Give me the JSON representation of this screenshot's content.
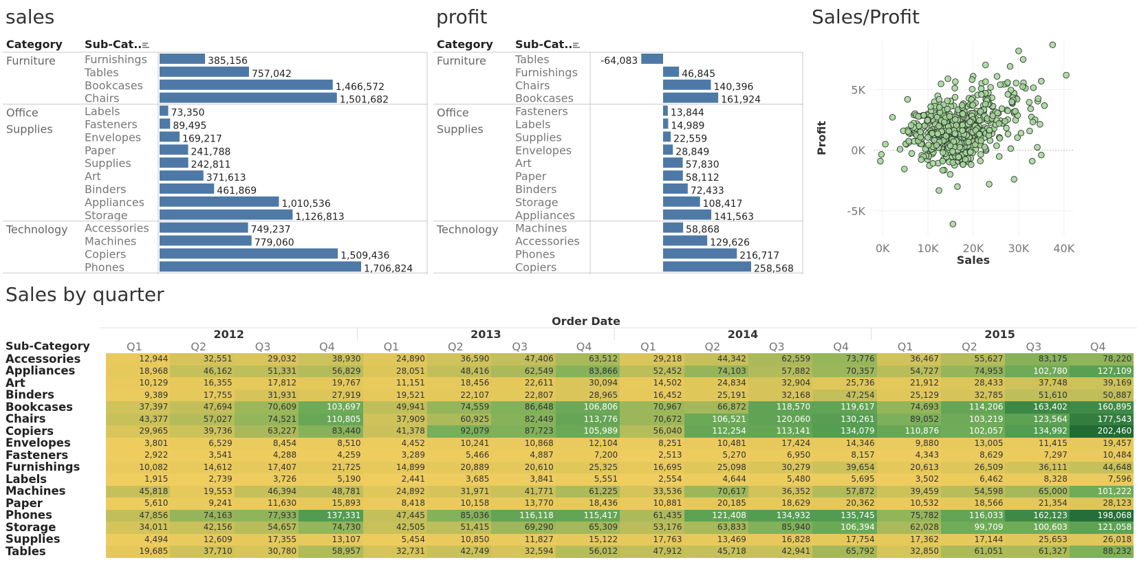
{
  "sales_panel": {
    "title": "sales",
    "col_category": "Category",
    "col_subcategory": "Sub-Cat..",
    "groups": [
      {
        "category": [
          "Furniture"
        ],
        "items": [
          [
            "Furnishings",
            385156,
            "385,156"
          ],
          [
            "Tables",
            757042,
            "757,042"
          ],
          [
            "Bookcases",
            1466572,
            "1,466,572"
          ],
          [
            "Chairs",
            1501682,
            "1,501,682"
          ]
        ]
      },
      {
        "category": [
          "Office",
          "Supplies"
        ],
        "items": [
          [
            "Labels",
            73350,
            "73,350"
          ],
          [
            "Fasteners",
            89495,
            "89,495"
          ],
          [
            "Envelopes",
            169217,
            "169,217"
          ],
          [
            "Paper",
            241788,
            "241,788"
          ],
          [
            "Supplies",
            242811,
            "242,811"
          ],
          [
            "Art",
            371613,
            "371,613"
          ],
          [
            "Binders",
            461869,
            "461,869"
          ],
          [
            "Appliances",
            1010536,
            "1,010,536"
          ],
          [
            "Storage",
            1126813,
            "1,126,813"
          ]
        ]
      },
      {
        "category": [
          "Technology"
        ],
        "items": [
          [
            "Accessories",
            749237,
            "749,237"
          ],
          [
            "Machines",
            779060,
            "779,060"
          ],
          [
            "Copiers",
            1509436,
            "1,509,436"
          ],
          [
            "Phones",
            1706824,
            "1,706,824"
          ]
        ]
      }
    ]
  },
  "profit_panel": {
    "title": "profit",
    "col_category": "Category",
    "col_subcategory": "Sub-Cat..",
    "groups": [
      {
        "category": [
          "Furniture"
        ],
        "items": [
          [
            "Tables",
            -64083,
            "-64,083"
          ],
          [
            "Furnishings",
            46845,
            "46,845"
          ],
          [
            "Chairs",
            140396,
            "140,396"
          ],
          [
            "Bookcases",
            161924,
            "161,924"
          ]
        ]
      },
      {
        "category": [
          "Office",
          "Supplies"
        ],
        "items": [
          [
            "Fasteners",
            13844,
            "13,844"
          ],
          [
            "Labels",
            14989,
            "14,989"
          ],
          [
            "Supplies",
            22559,
            "22,559"
          ],
          [
            "Envelopes",
            28849,
            "28,849"
          ],
          [
            "Art",
            57830,
            "57,830"
          ],
          [
            "Paper",
            58112,
            "58,112"
          ],
          [
            "Binders",
            72433,
            "72,433"
          ],
          [
            "Storage",
            108417,
            "108,417"
          ],
          [
            "Appliances",
            141563,
            "141,563"
          ]
        ]
      },
      {
        "category": [
          "Technology"
        ],
        "items": [
          [
            "Machines",
            58868,
            "58,868"
          ],
          [
            "Accessories",
            129626,
            "129,626"
          ],
          [
            "Phones",
            216717,
            "216,717"
          ],
          [
            "Copiers",
            258568,
            "258,568"
          ]
        ]
      }
    ]
  },
  "scatter_panel": {
    "title": "Sales/Profit",
    "xlabel": "Sales",
    "ylabel": "Profit",
    "x_ticks": [
      "0K",
      "10K",
      "20K",
      "30K",
      "40K"
    ],
    "y_ticks": [
      "5K",
      "0K",
      "-5K"
    ]
  },
  "heatmap_panel": {
    "title": "Sales by quarter",
    "header": "Order Date",
    "row_header": "Sub-Category",
    "years": [
      "2012",
      "2013",
      "2014",
      "2015"
    ],
    "quarters": [
      "Q1",
      "Q2",
      "Q3",
      "Q4"
    ]
  },
  "colors": {
    "bar": "#4e79a7",
    "scatter_fill": "#a6d49b",
    "scatter_stroke": "#2a3a2a",
    "heat_low": "#f0c95a",
    "heat_high": "#226b35"
  },
  "chart_data": [
    {
      "type": "bar",
      "name": "sales",
      "categories": [
        "Furnishings",
        "Tables",
        "Bookcases",
        "Chairs",
        "Labels",
        "Fasteners",
        "Envelopes",
        "Paper",
        "Supplies",
        "Art",
        "Binders",
        "Appliances",
        "Storage",
        "Accessories",
        "Machines",
        "Copiers",
        "Phones"
      ],
      "values": [
        385156,
        757042,
        1466572,
        1501682,
        73350,
        89495,
        169217,
        241788,
        242811,
        371613,
        461869,
        1010536,
        1126813,
        749237,
        779060,
        1509436,
        1706824
      ]
    },
    {
      "type": "bar",
      "name": "profit",
      "categories": [
        "Tables",
        "Furnishings",
        "Chairs",
        "Bookcases",
        "Fasteners",
        "Labels",
        "Supplies",
        "Envelopes",
        "Art",
        "Paper",
        "Binders",
        "Storage",
        "Appliances",
        "Machines",
        "Accessories",
        "Phones",
        "Copiers"
      ],
      "values": [
        -64083,
        46845,
        140396,
        161924,
        13844,
        14989,
        22559,
        28849,
        57830,
        58112,
        72433,
        108417,
        141563,
        58868,
        129626,
        216717,
        258568
      ]
    },
    {
      "type": "scatter",
      "name": "Sales/Profit",
      "xlim": [
        -2000,
        42000
      ],
      "ylim": [
        -7000,
        9000
      ],
      "clusters": [
        {
          "x_mean": 15000,
          "x_sd": 4500,
          "y_mean": 1500,
          "y_sd": 1200,
          "n": 500
        },
        {
          "x_mean": 24000,
          "x_sd": 5000,
          "y_mean": 3500,
          "y_sd": 1500,
          "n": 120
        }
      ],
      "outliers": [
        [
          37500,
          8700
        ],
        [
          40500,
          6200
        ],
        [
          35000,
          5700
        ],
        [
          35000,
          -400
        ],
        [
          15500,
          -6100
        ],
        [
          16500,
          -3000
        ],
        [
          28500,
          4000
        ],
        [
          33000,
          -900
        ],
        [
          29000,
          -2400
        ],
        [
          30000,
          8200
        ],
        [
          31000,
          7500
        ],
        [
          -500,
          -900
        ],
        [
          600,
          500
        ],
        [
          23500,
          -2800
        ]
      ]
    },
    {
      "type": "heatmap",
      "name": "Sales by quarter",
      "rows": [
        "Accessories",
        "Appliances",
        "Art",
        "Binders",
        "Bookcases",
        "Chairs",
        "Copiers",
        "Envelopes",
        "Fasteners",
        "Furnishings",
        "Labels",
        "Machines",
        "Paper",
        "Phones",
        "Storage",
        "Supplies",
        "Tables"
      ],
      "columns": [
        "2012 Q1",
        "2012 Q2",
        "2012 Q3",
        "2012 Q4",
        "2013 Q1",
        "2013 Q2",
        "2013 Q3",
        "2013 Q4",
        "2014 Q1",
        "2014 Q2",
        "2014 Q3",
        "2014 Q4",
        "2015 Q1",
        "2015 Q2",
        "2015 Q3",
        "2015 Q4"
      ],
      "values": [
        [
          12944,
          32551,
          29032,
          38930,
          24890,
          36590,
          47406,
          63512,
          29218,
          44342,
          62559,
          73776,
          36467,
          55627,
          83175,
          78220
        ],
        [
          18968,
          46162,
          51331,
          56829,
          28051,
          48416,
          62549,
          83866,
          52452,
          74103,
          57882,
          70357,
          54727,
          74953,
          102780,
          127109
        ],
        [
          10129,
          16355,
          17812,
          19767,
          11151,
          18456,
          22611,
          30094,
          14502,
          24834,
          32904,
          25736,
          21912,
          28433,
          37748,
          39169
        ],
        [
          9389,
          17755,
          31931,
          27919,
          19521,
          22107,
          22807,
          28965,
          16452,
          25191,
          32168,
          47254,
          25129,
          32785,
          51610,
          50887
        ],
        [
          37397,
          47694,
          70609,
          103697,
          49941,
          74559,
          86648,
          106806,
          70967,
          66872,
          118570,
          119617,
          74693,
          114206,
          163402,
          160895
        ],
        [
          43377,
          57027,
          74521,
          110805,
          37909,
          60925,
          82449,
          113776,
          70672,
          106521,
          120060,
          130261,
          89052,
          103219,
          123564,
          177543
        ],
        [
          29965,
          39736,
          63227,
          83440,
          41378,
          92079,
          87723,
          105989,
          56040,
          112254,
          113141,
          134079,
          110876,
          102057,
          134992,
          202460
        ],
        [
          3801,
          6529,
          8454,
          8510,
          4452,
          10241,
          10868,
          12104,
          8251,
          10481,
          17424,
          14346,
          9880,
          13005,
          11415,
          19457
        ],
        [
          2922,
          3541,
          4288,
          4259,
          3289,
          5466,
          4887,
          7200,
          2513,
          5270,
          6950,
          8157,
          4343,
          8629,
          7297,
          10484
        ],
        [
          10082,
          14612,
          17407,
          21725,
          14899,
          20889,
          20610,
          25325,
          16695,
          25098,
          30279,
          39654,
          20613,
          26509,
          36111,
          44648
        ],
        [
          1915,
          2739,
          3726,
          5190,
          2441,
          3685,
          3841,
          5551,
          2554,
          4644,
          5480,
          5695,
          3502,
          6462,
          8328,
          7596
        ],
        [
          45818,
          19553,
          46394,
          48781,
          24892,
          31971,
          41771,
          61225,
          33536,
          70617,
          36352,
          57872,
          39459,
          54598,
          65000,
          101222
        ],
        [
          5610,
          9241,
          11630,
          15893,
          8418,
          10158,
          13770,
          18436,
          10881,
          20185,
          18629,
          20362,
          10532,
          18566,
          21354,
          28123
        ],
        [
          47856,
          74163,
          77933,
          137331,
          47445,
          85036,
          116118,
          115417,
          61435,
          121408,
          134932,
          135745,
          75782,
          116033,
          162123,
          198068
        ],
        [
          34011,
          42156,
          54657,
          74730,
          42505,
          51415,
          69290,
          65309,
          53176,
          63833,
          85940,
          106394,
          62028,
          99709,
          100603,
          121058
        ],
        [
          4494,
          12609,
          17355,
          13107,
          5454,
          10850,
          11827,
          15122,
          17763,
          13469,
          16828,
          17754,
          17362,
          17144,
          25653,
          26018
        ],
        [
          19685,
          37710,
          30780,
          58957,
          32731,
          42749,
          32594,
          56012,
          47912,
          45718,
          42941,
          65792,
          32850,
          61051,
          61327,
          88232
        ]
      ]
    }
  ]
}
